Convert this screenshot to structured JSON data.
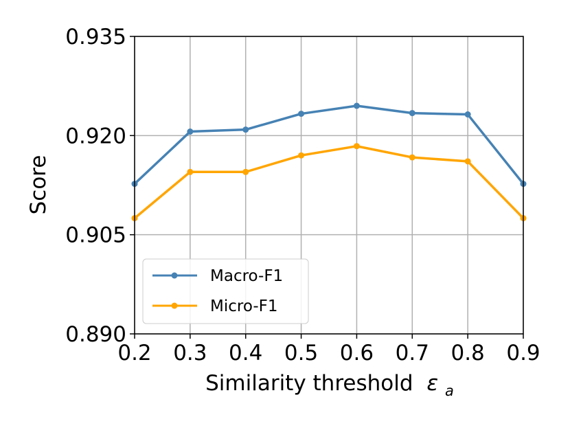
{
  "chart_data": {
    "type": "line",
    "x": [
      0.2,
      0.3,
      0.4,
      0.5,
      0.6,
      0.7,
      0.8,
      0.9
    ],
    "x_tick_labels": [
      "0.2",
      "0.3",
      "0.4",
      "0.5",
      "0.6",
      "0.7",
      "0.8",
      "0.9"
    ],
    "y_tick_labels": [
      "0.890",
      "0.905",
      "0.920",
      "0.935"
    ],
    "y_ticks": [
      0.89,
      0.905,
      0.92,
      0.935
    ],
    "xlim": [
      0.2,
      0.9
    ],
    "ylim": [
      0.89,
      0.935
    ],
    "xlabel": "Similarity threshold",
    "xlabel_symbol": "ε",
    "xlabel_subscript": "a",
    "ylabel": "Score",
    "grid": true,
    "legend_position": "bottom-left",
    "series": [
      {
        "name": "Macro-F1",
        "color": "#4682b4",
        "values": [
          0.9127,
          0.9206,
          0.9209,
          0.9233,
          0.9245,
          0.9234,
          0.9232,
          0.9127
        ]
      },
      {
        "name": "Micro-F1",
        "color": "#ffa500",
        "values": [
          0.9075,
          0.9145,
          0.9145,
          0.917,
          0.9184,
          0.9167,
          0.9161,
          0.9075
        ]
      }
    ]
  }
}
